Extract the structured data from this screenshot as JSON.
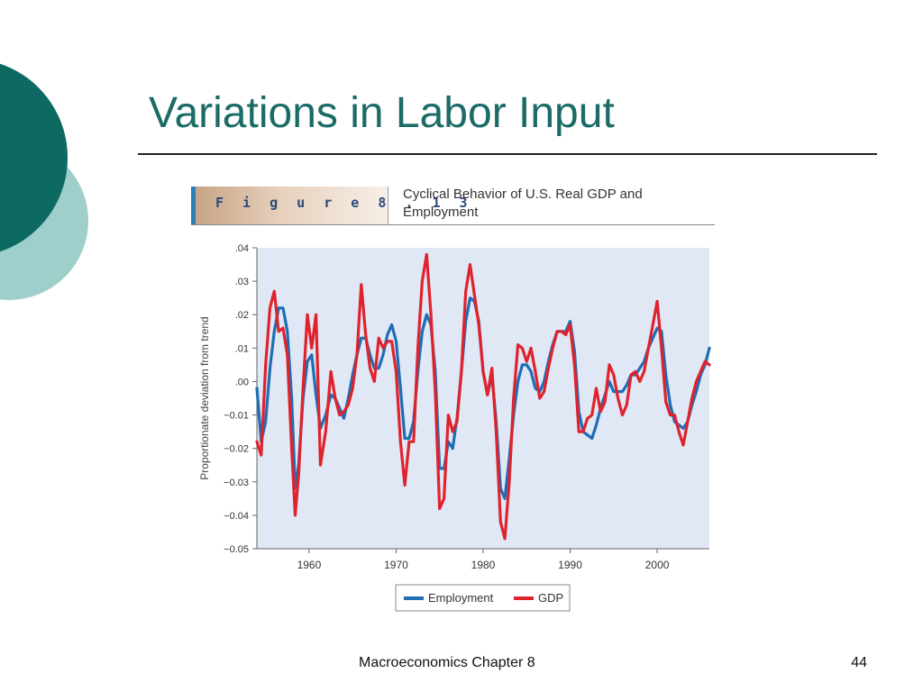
{
  "slide": {
    "title": "Variations in Labor Input",
    "footer_text": "Macroeconomics Chapter 8",
    "page_number": "44"
  },
  "figure": {
    "label": "F i g u r e   8 . 1 3",
    "caption": "Cyclical Behavior of U.S. Real GDP and Employment"
  },
  "colors": {
    "title": "#1b6b66",
    "deco_dark": "#0d6a63",
    "deco_light": "#9fcfca",
    "plot_bg": "#e1e8f5",
    "employment": "#1f6db5",
    "gdp": "#e0222c"
  },
  "chart_data": {
    "type": "line",
    "ylabel": "Proportionate deviation from trend",
    "xlabel": "",
    "xlim": [
      1954,
      2006
    ],
    "ylim": [
      -0.05,
      0.04
    ],
    "x_ticks": [
      1960,
      1970,
      1980,
      1990,
      2000
    ],
    "y_ticks": [
      0.04,
      0.03,
      0.02,
      0.01,
      0.0,
      -0.01,
      -0.02,
      -0.03,
      -0.04,
      -0.05
    ],
    "y_tick_labels": [
      ".04",
      ".03",
      ".02",
      ".01",
      ".00",
      "−0.01",
      "−0.02",
      "−0.03",
      "−0.04",
      "−0.05"
    ],
    "x_tick_labels": [
      "1960",
      "1970",
      "1980",
      "1990",
      "2000"
    ],
    "legend_position": "bottom-center",
    "series": [
      {
        "name": "Employment",
        "x": [
          1954.0,
          1954.5,
          1955.0,
          1955.5,
          1956.0,
          1956.5,
          1957.0,
          1957.5,
          1958.0,
          1958.4,
          1958.8,
          1959.3,
          1959.8,
          1960.3,
          1960.8,
          1961.3,
          1961.9,
          1962.5,
          1963.0,
          1963.5,
          1964.0,
          1964.5,
          1965.0,
          1965.5,
          1966.0,
          1966.5,
          1967.0,
          1967.5,
          1968.0,
          1968.5,
          1969.0,
          1969.5,
          1970.0,
          1970.5,
          1971.0,
          1971.5,
          1972.0,
          1972.5,
          1973.0,
          1973.5,
          1974.0,
          1974.5,
          1975.0,
          1975.5,
          1976.0,
          1976.5,
          1977.0,
          1977.5,
          1978.0,
          1978.5,
          1979.0,
          1979.5,
          1980.0,
          1980.5,
          1981.0,
          1981.5,
          1982.0,
          1982.5,
          1983.0,
          1983.5,
          1984.0,
          1984.5,
          1985.0,
          1985.5,
          1986.0,
          1986.5,
          1987.0,
          1987.5,
          1988.0,
          1988.5,
          1989.0,
          1989.5,
          1990.0,
          1990.5,
          1991.0,
          1991.5,
          1992.0,
          1992.5,
          1993.0,
          1993.5,
          1994.0,
          1994.5,
          1995.0,
          1995.5,
          1996.0,
          1996.5,
          1997.0,
          1997.5,
          1998.0,
          1998.5,
          1999.0,
          1999.5,
          2000.0,
          2000.5,
          2001.0,
          2001.5,
          2002.0,
          2002.5,
          2003.0,
          2003.5,
          2004.0,
          2004.5,
          2005.0,
          2005.5,
          2006.0
        ],
        "values": [
          -0.002,
          -0.018,
          -0.012,
          0.004,
          0.015,
          0.022,
          0.022,
          0.015,
          -0.005,
          -0.032,
          -0.025,
          -0.005,
          0.006,
          0.008,
          -0.004,
          -0.014,
          -0.01,
          -0.004,
          -0.005,
          -0.008,
          -0.011,
          -0.005,
          0.002,
          0.008,
          0.013,
          0.013,
          0.008,
          0.004,
          0.004,
          0.008,
          0.014,
          0.017,
          0.012,
          -0.002,
          -0.017,
          -0.017,
          -0.012,
          0.003,
          0.015,
          0.02,
          0.017,
          0.003,
          -0.026,
          -0.026,
          -0.018,
          -0.02,
          -0.011,
          0.003,
          0.018,
          0.025,
          0.024,
          0.018,
          0.003,
          -0.004,
          0.002,
          -0.012,
          -0.032,
          -0.035,
          -0.023,
          -0.01,
          0.0,
          0.005,
          0.005,
          0.003,
          -0.002,
          -0.003,
          0.0,
          0.006,
          0.011,
          0.015,
          0.015,
          0.015,
          0.018,
          0.009,
          -0.009,
          -0.015,
          -0.016,
          -0.017,
          -0.013,
          -0.008,
          -0.004,
          0.0,
          -0.003,
          -0.003,
          -0.003,
          -0.001,
          0.002,
          0.002,
          0.004,
          0.006,
          0.01,
          0.013,
          0.016,
          0.015,
          0.002,
          -0.007,
          -0.012,
          -0.013,
          -0.014,
          -0.012,
          -0.007,
          -0.003,
          0.002,
          0.005,
          0.01
        ]
      },
      {
        "name": "GDP",
        "x": [
          1954.0,
          1954.5,
          1955.0,
          1955.5,
          1956.0,
          1956.5,
          1957.0,
          1957.5,
          1958.0,
          1958.4,
          1958.8,
          1959.3,
          1959.8,
          1960.3,
          1960.8,
          1961.3,
          1961.9,
          1962.5,
          1963.0,
          1963.5,
          1964.0,
          1964.5,
          1965.0,
          1965.5,
          1966.0,
          1966.5,
          1967.0,
          1967.5,
          1968.0,
          1968.5,
          1969.0,
          1969.5,
          1970.0,
          1970.5,
          1971.0,
          1971.5,
          1972.0,
          1972.5,
          1973.0,
          1973.5,
          1974.0,
          1974.5,
          1975.0,
          1975.5,
          1976.0,
          1976.5,
          1977.0,
          1977.5,
          1978.0,
          1978.5,
          1979.0,
          1979.5,
          1980.0,
          1980.5,
          1981.0,
          1981.5,
          1982.0,
          1982.5,
          1983.0,
          1983.5,
          1984.0,
          1984.5,
          1985.0,
          1985.5,
          1986.0,
          1986.5,
          1987.0,
          1987.5,
          1988.0,
          1988.5,
          1989.0,
          1989.5,
          1990.0,
          1990.5,
          1991.0,
          1991.5,
          1992.0,
          1992.5,
          1993.0,
          1993.5,
          1994.0,
          1994.5,
          1995.0,
          1995.5,
          1996.0,
          1996.5,
          1997.0,
          1997.5,
          1998.0,
          1998.5,
          1999.0,
          1999.5,
          2000.0,
          2000.5,
          2001.0,
          2001.5,
          2002.0,
          2002.5,
          2003.0,
          2003.5,
          2004.0,
          2004.5,
          2005.0,
          2005.5,
          2006.0
        ],
        "values": [
          -0.018,
          -0.022,
          0.005,
          0.022,
          0.027,
          0.015,
          0.016,
          0.008,
          -0.02,
          -0.04,
          -0.028,
          -0.002,
          0.02,
          0.01,
          0.02,
          -0.025,
          -0.015,
          0.003,
          -0.005,
          -0.01,
          -0.009,
          -0.007,
          -0.002,
          0.008,
          0.029,
          0.014,
          0.004,
          0.0,
          0.013,
          0.01,
          0.012,
          0.012,
          0.003,
          -0.018,
          -0.031,
          -0.018,
          -0.018,
          0.01,
          0.03,
          0.038,
          0.02,
          -0.003,
          -0.038,
          -0.035,
          -0.01,
          -0.015,
          -0.012,
          0.003,
          0.027,
          0.035,
          0.026,
          0.017,
          0.003,
          -0.004,
          0.004,
          -0.015,
          -0.042,
          -0.047,
          -0.03,
          -0.005,
          0.011,
          0.01,
          0.006,
          0.01,
          0.003,
          -0.005,
          -0.003,
          0.004,
          0.01,
          0.015,
          0.015,
          0.014,
          0.017,
          0.005,
          -0.015,
          -0.015,
          -0.011,
          -0.01,
          -0.002,
          -0.009,
          -0.006,
          0.005,
          0.002,
          -0.005,
          -0.01,
          -0.007,
          0.002,
          0.003,
          0.0,
          0.003,
          0.01,
          0.017,
          0.024,
          0.01,
          -0.006,
          -0.01,
          -0.01,
          -0.015,
          -0.019,
          -0.012,
          -0.005,
          0.0,
          0.003,
          0.006,
          0.005
        ]
      }
    ]
  }
}
